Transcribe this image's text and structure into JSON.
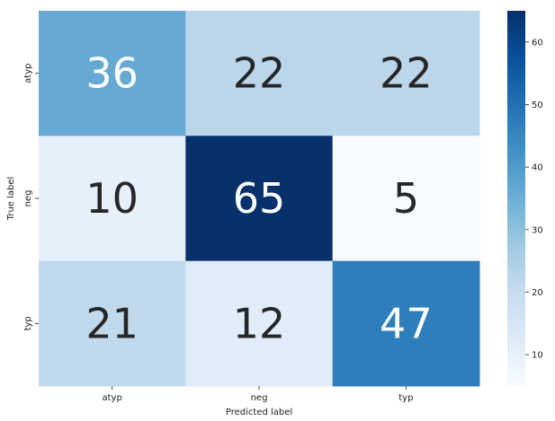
{
  "chart_data": {
    "type": "heatmap",
    "title": "",
    "xlabel": "Predicted label",
    "ylabel": "True label",
    "x_categories": [
      "atyp",
      "neg",
      "typ"
    ],
    "y_categories": [
      "atyp",
      "neg",
      "typ"
    ],
    "matrix": [
      [
        36,
        22,
        22
      ],
      [
        10,
        65,
        5
      ],
      [
        21,
        12,
        47
      ]
    ],
    "colormap": "Blues",
    "colorbar": {
      "range": [
        5,
        65
      ],
      "ticks": [
        10,
        20,
        30,
        40,
        50,
        60
      ]
    },
    "grid": false
  }
}
